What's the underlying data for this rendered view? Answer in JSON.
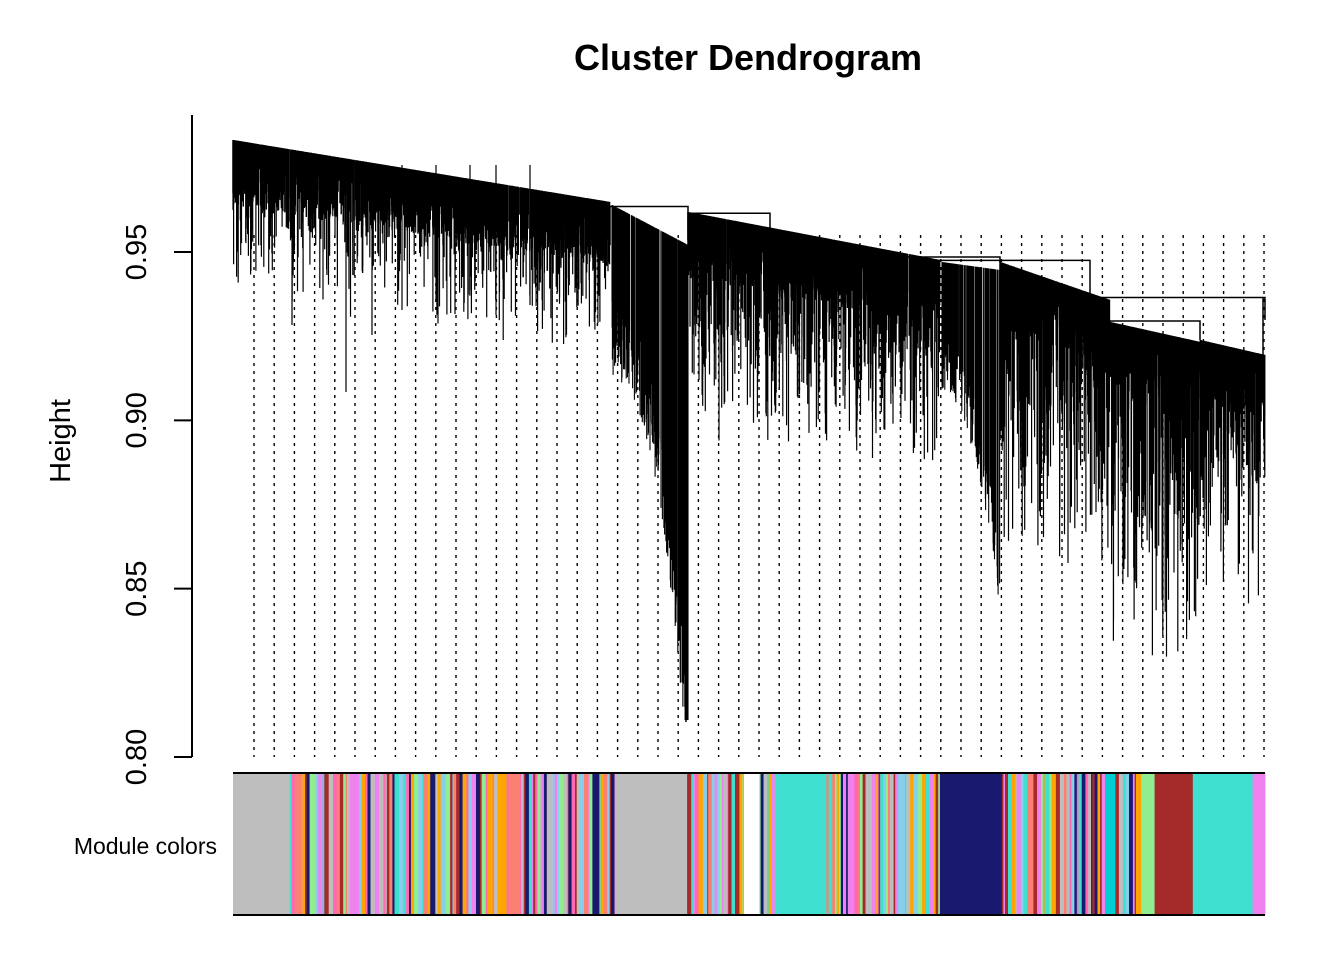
{
  "chart_data": {
    "type": "dendrogram",
    "title": "Cluster Dendrogram",
    "ylabel": "Height",
    "xlabel": "",
    "ylim": [
      0.8,
      0.99
    ],
    "yticks": [
      0.8,
      0.85,
      0.9,
      0.95
    ],
    "ytick_labels": [
      "0.80",
      "0.85",
      "0.90",
      "0.95"
    ],
    "grid": false,
    "color_row_label": "Module colors",
    "top_merge_heights": [
      0.9635,
      0.9615,
      0.9485,
      0.9475,
      0.9365,
      0.9355,
      0.9295
    ],
    "module_blocks": [
      {
        "start": 0.0,
        "end": 0.055,
        "color": "#bebebe"
      },
      {
        "start": 0.055,
        "end": 0.37,
        "color": "mixed"
      },
      {
        "start": 0.37,
        "end": 0.44,
        "color": "#bebebe"
      },
      {
        "start": 0.44,
        "end": 0.495,
        "color": "mixed"
      },
      {
        "start": 0.495,
        "end": 0.51,
        "color": "#ffffff"
      },
      {
        "start": 0.51,
        "end": 0.525,
        "color": "mixed"
      },
      {
        "start": 0.525,
        "end": 0.575,
        "color": "#40e0d0"
      },
      {
        "start": 0.575,
        "end": 0.685,
        "color": "mixed"
      },
      {
        "start": 0.685,
        "end": 0.745,
        "color": "#191970"
      },
      {
        "start": 0.745,
        "end": 0.845,
        "color": "mixed"
      },
      {
        "start": 0.845,
        "end": 0.855,
        "color": "#00ced1"
      },
      {
        "start": 0.855,
        "end": 0.875,
        "color": "mixed"
      },
      {
        "start": 0.875,
        "end": 0.88,
        "color": "#ffa500"
      },
      {
        "start": 0.88,
        "end": 0.893,
        "color": "#90ee90"
      },
      {
        "start": 0.893,
        "end": 0.93,
        "color": "#a52a2a"
      },
      {
        "start": 0.93,
        "end": 0.988,
        "color": "#40e0d0"
      },
      {
        "start": 0.988,
        "end": 1.0,
        "color": "#ee82ee"
      }
    ],
    "palette": [
      "#a52a2a",
      "#40e0d0",
      "#ffa500",
      "#fa8072",
      "#bebebe",
      "#87ceeb",
      "#90ee90",
      "#ee82ee",
      "#191970",
      "#ff69b4"
    ]
  }
}
